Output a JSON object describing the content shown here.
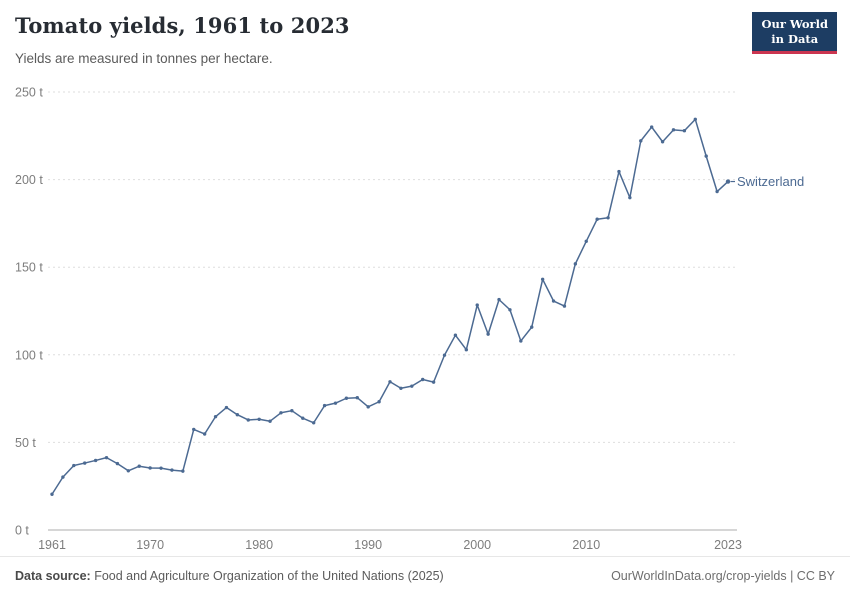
{
  "header": {
    "title": "Tomato yields, 1961 to 2023",
    "subtitle": "Yields are measured in tonnes per hectare.",
    "logo_line1": "Our World",
    "logo_line2": "in Data"
  },
  "colors": {
    "brand_navy": "#1d3d63",
    "brand_red": "#cb3550",
    "series_blue": "#4c6a92",
    "grid_gray": "#dedede",
    "tick_gray": "#7d7d7d"
  },
  "chart_data": {
    "type": "line",
    "title": "Tomato yields, 1961 to 2023",
    "subtitle": "Yields are measured in tonnes per hectare.",
    "unit": "tonnes per hectare",
    "xlabel": "",
    "ylabel": "",
    "xlim": [
      1961,
      2023
    ],
    "ylim": [
      0,
      250
    ],
    "grid": true,
    "legend_position": "end-of-line",
    "xticks": [
      1961,
      1970,
      1980,
      1990,
      2000,
      2010,
      2023
    ],
    "yticks": [
      0,
      50,
      100,
      150,
      200,
      250
    ],
    "ytick_labels": [
      "0 t",
      "50 t",
      "100 t",
      "150 t",
      "200 t",
      "250 t"
    ],
    "series": [
      {
        "name": "Switzerland",
        "color": "#4c6a92",
        "x": [
          1961,
          1962,
          1963,
          1964,
          1965,
          1966,
          1967,
          1968,
          1969,
          1970,
          1971,
          1972,
          1973,
          1974,
          1975,
          1976,
          1977,
          1978,
          1979,
          1980,
          1981,
          1982,
          1983,
          1984,
          1985,
          1986,
          1987,
          1988,
          1989,
          1990,
          1991,
          1992,
          1993,
          1994,
          1995,
          1996,
          1997,
          1998,
          1999,
          2000,
          2001,
          2002,
          2003,
          2004,
          2005,
          2006,
          2007,
          2008,
          2009,
          2010,
          2011,
          2012,
          2013,
          2014,
          2015,
          2016,
          2017,
          2018,
          2019,
          2020,
          2021,
          2022,
          2023
        ],
        "values": [
          20.4,
          30.2,
          36.8,
          38.2,
          39.7,
          41.3,
          37.9,
          33.8,
          36.4,
          35.4,
          35.3,
          34.2,
          33.6,
          57.4,
          54.8,
          64.7,
          69.9,
          65.8,
          62.8,
          63.2,
          62.1,
          66.9,
          68.1,
          63.8,
          61.2,
          71.0,
          72.4,
          75.2,
          75.5,
          70.3,
          73.2,
          84.6,
          80.9,
          82.1,
          85.9,
          84.4,
          99.8,
          111.2,
          102.9,
          128.4,
          111.8,
          131.5,
          125.7,
          107.9,
          115.8,
          143.1,
          130.7,
          127.8,
          151.9,
          164.8,
          177.4,
          178.2,
          204.6,
          189.7,
          222.1,
          230.0,
          221.6,
          228.4,
          227.9,
          234.4,
          213.4,
          193.2,
          198.9
        ]
      }
    ]
  },
  "footer": {
    "source_label": "Data source:",
    "source_text": " Food and Agriculture Organization of the United Nations (2025)",
    "right_text": "OurWorldInData.org/crop-yields | CC BY"
  }
}
